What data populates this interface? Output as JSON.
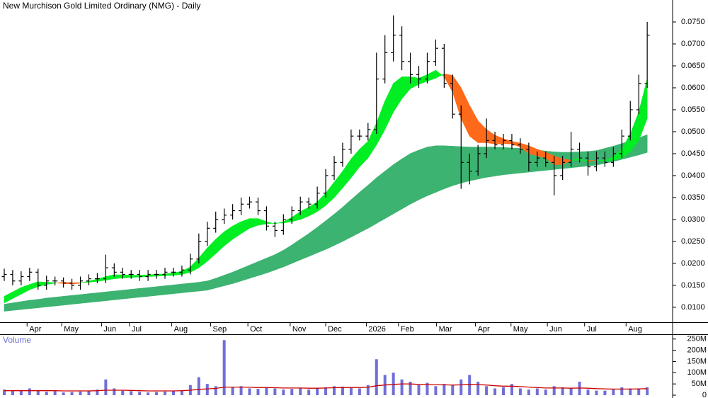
{
  "chart_data": {
    "type": "ohlc",
    "title": "New Murchison Gold Limited Ordinary (NMG) - Daily",
    "x": [
      0,
      1,
      2,
      3,
      4,
      5,
      6,
      7,
      8,
      9,
      10,
      11,
      12,
      13,
      14,
      15,
      16,
      17,
      18,
      19,
      20,
      21,
      22,
      23,
      24,
      25,
      26,
      27,
      28,
      29,
      30,
      31,
      32,
      33,
      34,
      35,
      36,
      37,
      38,
      39,
      40,
      41,
      42,
      43,
      44,
      45,
      46,
      47,
      48,
      49,
      50,
      51,
      52,
      53,
      54,
      55,
      56,
      57,
      58,
      59,
      60,
      61,
      62,
      63,
      64,
      65,
      66,
      67,
      68,
      69,
      70,
      71,
      72,
      73,
      74,
      75,
      76
    ],
    "xlim": [
      -0.5,
      79
    ],
    "xticks": [
      {
        "value": 2.7,
        "label": "Apr"
      },
      {
        "value": 6.8,
        "label": "May"
      },
      {
        "value": 11.5,
        "label": "Jun"
      },
      {
        "value": 14.8,
        "label": "Jul"
      },
      {
        "value": 19.8,
        "label": "Aug"
      },
      {
        "value": 24.4,
        "label": "Sep"
      },
      {
        "value": 28.8,
        "label": "Oct"
      },
      {
        "value": 33.8,
        "label": "Nov"
      },
      {
        "value": 38.0,
        "label": "Dec"
      },
      {
        "value": 42.8,
        "label": "2026"
      },
      {
        "value": 46.6,
        "label": "Feb"
      },
      {
        "value": 51.1,
        "label": "Mar"
      },
      {
        "value": 55.7,
        "label": "Apr"
      },
      {
        "value": 59.9,
        "label": "May"
      },
      {
        "value": 64.2,
        "label": "Jun"
      },
      {
        "value": 68.6,
        "label": "Jul"
      },
      {
        "value": 73.5,
        "label": "Aug"
      }
    ],
    "ylim": [
      0.0066,
      0.08
    ],
    "yticks": [
      {
        "value": 0.01,
        "label": "0.0100"
      },
      {
        "value": 0.015,
        "label": "0.0150"
      },
      {
        "value": 0.02,
        "label": "0.0200"
      },
      {
        "value": 0.025,
        "label": "0.0250"
      },
      {
        "value": 0.03,
        "label": "0.0300"
      },
      {
        "value": 0.035,
        "label": "0.0350"
      },
      {
        "value": 0.04,
        "label": "0.0400"
      },
      {
        "value": 0.045,
        "label": "0.0450"
      },
      {
        "value": 0.05,
        "label": "0.0500"
      },
      {
        "value": 0.055,
        "label": "0.0550"
      },
      {
        "value": 0.06,
        "label": "0.0600"
      },
      {
        "value": 0.065,
        "label": "0.0650"
      },
      {
        "value": 0.07,
        "label": "0.0700"
      },
      {
        "value": 0.075,
        "label": "0.0750"
      }
    ],
    "bar_color": "#000000",
    "open": [
      0.017,
      0.0175,
      0.016,
      0.017,
      0.018,
      0.015,
      0.016,
      0.016,
      0.0155,
      0.015,
      0.016,
      0.0165,
      0.0165,
      0.019,
      0.018,
      0.0175,
      0.0175,
      0.017,
      0.0175,
      0.0175,
      0.018,
      0.018,
      0.0185,
      0.021,
      0.025,
      0.028,
      0.03,
      0.031,
      0.032,
      0.0335,
      0.034,
      0.032,
      0.0285,
      0.0275,
      0.03,
      0.032,
      0.034,
      0.0335,
      0.036,
      0.04,
      0.043,
      0.046,
      0.049,
      0.049,
      0.0505,
      0.062,
      0.068,
      0.072,
      0.066,
      0.063,
      0.062,
      0.066,
      0.069,
      0.061,
      0.054,
      0.043,
      0.041,
      0.045,
      0.048,
      0.047,
      0.048,
      0.047,
      0.046,
      0.043,
      0.044,
      0.043,
      0.04,
      0.043,
      0.046,
      0.044,
      0.042,
      0.044,
      0.043,
      0.045,
      0.049,
      0.055,
      0.061
    ],
    "high": [
      0.0188,
      0.0185,
      0.0182,
      0.019,
      0.0188,
      0.0172,
      0.017,
      0.0168,
      0.0165,
      0.017,
      0.0175,
      0.0178,
      0.022,
      0.02,
      0.019,
      0.0185,
      0.0185,
      0.0185,
      0.0185,
      0.019,
      0.019,
      0.0195,
      0.0222,
      0.0268,
      0.0295,
      0.0318,
      0.0325,
      0.0335,
      0.035,
      0.0352,
      0.035,
      0.033,
      0.0295,
      0.0312,
      0.033,
      0.0352,
      0.035,
      0.0375,
      0.0415,
      0.0445,
      0.0475,
      0.0505,
      0.0505,
      0.052,
      0.068,
      0.072,
      0.0765,
      0.074,
      0.068,
      0.065,
      0.068,
      0.071,
      0.07,
      0.063,
      0.056,
      0.045,
      0.047,
      0.053,
      0.05,
      0.0495,
      0.0495,
      0.0485,
      0.0475,
      0.0455,
      0.0455,
      0.0445,
      0.0445,
      0.05,
      0.0475,
      0.0455,
      0.0455,
      0.0455,
      0.0465,
      0.0505,
      0.057,
      0.063,
      0.075
    ],
    "low": [
      0.016,
      0.015,
      0.015,
      0.016,
      0.014,
      0.014,
      0.015,
      0.0145,
      0.014,
      0.014,
      0.015,
      0.0155,
      0.0155,
      0.017,
      0.0165,
      0.0165,
      0.016,
      0.016,
      0.0165,
      0.0165,
      0.017,
      0.017,
      0.0175,
      0.02,
      0.024,
      0.027,
      0.029,
      0.03,
      0.031,
      0.0325,
      0.031,
      0.0275,
      0.026,
      0.0265,
      0.029,
      0.031,
      0.0325,
      0.0325,
      0.035,
      0.039,
      0.042,
      0.045,
      0.048,
      0.048,
      0.0495,
      0.061,
      0.066,
      0.064,
      0.061,
      0.06,
      0.061,
      0.065,
      0.06,
      0.053,
      0.037,
      0.038,
      0.04,
      0.044,
      0.046,
      0.046,
      0.046,
      0.045,
      0.041,
      0.042,
      0.042,
      0.0355,
      0.039,
      0.042,
      0.043,
      0.04,
      0.041,
      0.042,
      0.042,
      0.044,
      0.048,
      0.054,
      0.06
    ],
    "close": [
      0.0175,
      0.016,
      0.017,
      0.018,
      0.015,
      0.016,
      0.016,
      0.0155,
      0.015,
      0.016,
      0.0165,
      0.0165,
      0.019,
      0.018,
      0.0175,
      0.0175,
      0.017,
      0.0175,
      0.0175,
      0.018,
      0.018,
      0.0185,
      0.021,
      0.025,
      0.028,
      0.03,
      0.031,
      0.032,
      0.0335,
      0.034,
      0.032,
      0.0285,
      0.0275,
      0.03,
      0.032,
      0.034,
      0.0335,
      0.036,
      0.04,
      0.043,
      0.046,
      0.049,
      0.049,
      0.0505,
      0.062,
      0.068,
      0.072,
      0.066,
      0.063,
      0.062,
      0.066,
      0.069,
      0.061,
      0.054,
      0.043,
      0.041,
      0.045,
      0.048,
      0.047,
      0.048,
      0.047,
      0.046,
      0.043,
      0.044,
      0.043,
      0.04,
      0.043,
      0.046,
      0.044,
      0.042,
      0.044,
      0.043,
      0.045,
      0.049,
      0.055,
      0.061,
      0.072
    ],
    "fast_band": {
      "up_color": "#00ee22",
      "down_color": "#ff6a1a",
      "a": [
        0.0125,
        0.0135,
        0.0145,
        0.0152,
        0.0158,
        0.0157,
        0.0156,
        0.0154,
        0.0153,
        0.0155,
        0.016,
        0.0164,
        0.017,
        0.0174,
        0.0174,
        0.0173,
        0.0173,
        0.0174,
        0.0175,
        0.0176,
        0.0178,
        0.0182,
        0.0192,
        0.0212,
        0.0235,
        0.0255,
        0.0272,
        0.0285,
        0.0295,
        0.0302,
        0.0302,
        0.0295,
        0.029,
        0.0295,
        0.0305,
        0.0318,
        0.0328,
        0.034,
        0.036,
        0.0385,
        0.041,
        0.0438,
        0.046,
        0.0478,
        0.052,
        0.057,
        0.061,
        0.0625,
        0.0625,
        0.0622,
        0.063,
        0.064,
        0.0625,
        0.059,
        0.053,
        0.049,
        0.0475,
        0.0475,
        0.0472,
        0.0473,
        0.0472,
        0.0465,
        0.045,
        0.0445,
        0.044,
        0.0425,
        0.0425,
        0.0435,
        0.0438,
        0.0432,
        0.0435,
        0.0435,
        0.0442,
        0.046,
        0.0495,
        0.0545,
        0.062
      ],
      "b": [
        0.011,
        0.012,
        0.013,
        0.014,
        0.0147,
        0.0152,
        0.0155,
        0.0157,
        0.0156,
        0.0156,
        0.0157,
        0.0159,
        0.0162,
        0.0165,
        0.0167,
        0.0168,
        0.0169,
        0.017,
        0.0171,
        0.0172,
        0.0173,
        0.0175,
        0.018,
        0.019,
        0.0205,
        0.0222,
        0.024,
        0.0255,
        0.0268,
        0.028,
        0.0287,
        0.029,
        0.0292,
        0.0292,
        0.0295,
        0.03,
        0.0308,
        0.0318,
        0.0332,
        0.035,
        0.0372,
        0.0395,
        0.042,
        0.044,
        0.047,
        0.0505,
        0.0545,
        0.0575,
        0.0598,
        0.0608,
        0.0615,
        0.0622,
        0.0632,
        0.0628,
        0.06,
        0.056,
        0.0525,
        0.0505,
        0.0492,
        0.0484,
        0.0478,
        0.0474,
        0.0468,
        0.046,
        0.0453,
        0.0445,
        0.0438,
        0.0435,
        0.0435,
        0.0435,
        0.0434,
        0.0434,
        0.0435,
        0.044,
        0.0455,
        0.048,
        0.053
      ]
    },
    "slow_band": {
      "up_color": "#3cb371",
      "down_color": "#ff6a1a",
      "a": [
        0.0107,
        0.011,
        0.0113,
        0.0116,
        0.0118,
        0.0121,
        0.0123,
        0.0125,
        0.0127,
        0.0129,
        0.0131,
        0.0133,
        0.0135,
        0.0137,
        0.0139,
        0.0141,
        0.0143,
        0.0145,
        0.0147,
        0.0149,
        0.0151,
        0.0153,
        0.0155,
        0.0157,
        0.016,
        0.0166,
        0.0173,
        0.018,
        0.0188,
        0.0196,
        0.0204,
        0.0212,
        0.022,
        0.023,
        0.0242,
        0.0255,
        0.0268,
        0.0282,
        0.0297,
        0.0312,
        0.0328,
        0.0345,
        0.0362,
        0.0378,
        0.0395,
        0.041,
        0.0425,
        0.0438,
        0.045,
        0.0458,
        0.0465,
        0.0468,
        0.0468,
        0.0467,
        0.0466,
        0.0465,
        0.0465,
        0.0465,
        0.0465,
        0.0464,
        0.0463,
        0.0462,
        0.046,
        0.0458,
        0.0456,
        0.0454,
        0.0453,
        0.0453,
        0.0454,
        0.0455,
        0.0457,
        0.0462,
        0.0467,
        0.0473,
        0.0479,
        0.0486,
        0.0493
      ],
      "b": [
        0.0091,
        0.0093,
        0.0095,
        0.0097,
        0.0099,
        0.0101,
        0.0103,
        0.0105,
        0.0107,
        0.0109,
        0.0111,
        0.0113,
        0.0115,
        0.0117,
        0.0119,
        0.0121,
        0.0123,
        0.0125,
        0.0127,
        0.0129,
        0.0131,
        0.0133,
        0.0135,
        0.0137,
        0.0139,
        0.0144,
        0.0149,
        0.0154,
        0.016,
        0.0166,
        0.0172,
        0.0178,
        0.0185,
        0.0192,
        0.02,
        0.0208,
        0.0216,
        0.0224,
        0.0232,
        0.0241,
        0.025,
        0.026,
        0.027,
        0.028,
        0.0291,
        0.0302,
        0.0313,
        0.0324,
        0.0335,
        0.0345,
        0.0354,
        0.0362,
        0.037,
        0.0377,
        0.0383,
        0.0388,
        0.0392,
        0.0396,
        0.0399,
        0.0402,
        0.0404,
        0.0406,
        0.0408,
        0.041,
        0.0412,
        0.0414,
        0.0416,
        0.0418,
        0.042,
        0.0422,
        0.0424,
        0.0428,
        0.0432,
        0.0437,
        0.0442,
        0.0447,
        0.0453
      ]
    },
    "volume": {
      "title": "Volume",
      "color": "#6f6fd8",
      "ma_color": "#cc0000",
      "ylim": [
        0,
        268000000
      ],
      "yticks": [
        0,
        {
          "value": 50000000,
          "label": "50M"
        },
        {
          "value": 100000000,
          "label": "100M"
        },
        {
          "value": 150000000,
          "label": "150M"
        },
        {
          "value": 200000000,
          "label": "200M"
        },
        {
          "value": 250000000,
          "label": "250M"
        }
      ],
      "values": [
        25000000,
        18000000,
        22000000,
        30000000,
        20000000,
        15000000,
        18000000,
        12000000,
        14000000,
        16000000,
        20000000,
        25000000,
        70000000,
        30000000,
        20000000,
        18000000,
        15000000,
        12000000,
        14000000,
        16000000,
        18000000,
        22000000,
        45000000,
        80000000,
        50000000,
        40000000,
        245000000,
        35000000,
        40000000,
        30000000,
        28000000,
        35000000,
        30000000,
        25000000,
        28000000,
        30000000,
        25000000,
        30000000,
        35000000,
        40000000,
        38000000,
        35000000,
        30000000,
        45000000,
        160000000,
        90000000,
        100000000,
        70000000,
        60000000,
        45000000,
        55000000,
        40000000,
        50000000,
        45000000,
        70000000,
        90000000,
        60000000,
        40000000,
        30000000,
        35000000,
        50000000,
        30000000,
        25000000,
        30000000,
        25000000,
        40000000,
        35000000,
        30000000,
        60000000,
        25000000,
        20000000,
        20000000,
        25000000,
        35000000,
        30000000,
        30000000,
        35000000
      ],
      "ma": [
        20000000,
        20000000,
        20000000,
        20000000,
        20000000,
        20000000,
        20000000,
        19000000,
        19000000,
        19000000,
        19000000,
        20000000,
        22000000,
        22000000,
        22000000,
        21000000,
        20000000,
        19000000,
        19000000,
        19000000,
        19000000,
        20000000,
        22000000,
        26000000,
        28000000,
        30000000,
        36000000,
        36000000,
        36000000,
        35000000,
        34000000,
        34000000,
        33000000,
        32000000,
        32000000,
        32000000,
        31000000,
        31000000,
        32000000,
        33000000,
        34000000,
        34000000,
        34000000,
        35000000,
        42000000,
        45000000,
        48000000,
        50000000,
        50000000,
        48000000,
        47000000,
        46000000,
        46000000,
        45000000,
        46000000,
        48000000,
        47000000,
        45000000,
        42000000,
        40000000,
        40000000,
        38000000,
        36000000,
        34000000,
        32000000,
        32000000,
        32000000,
        31000000,
        32000000,
        31000000,
        29000000,
        28000000,
        27000000,
        27000000,
        27000000,
        28000000,
        29000000
      ]
    }
  }
}
